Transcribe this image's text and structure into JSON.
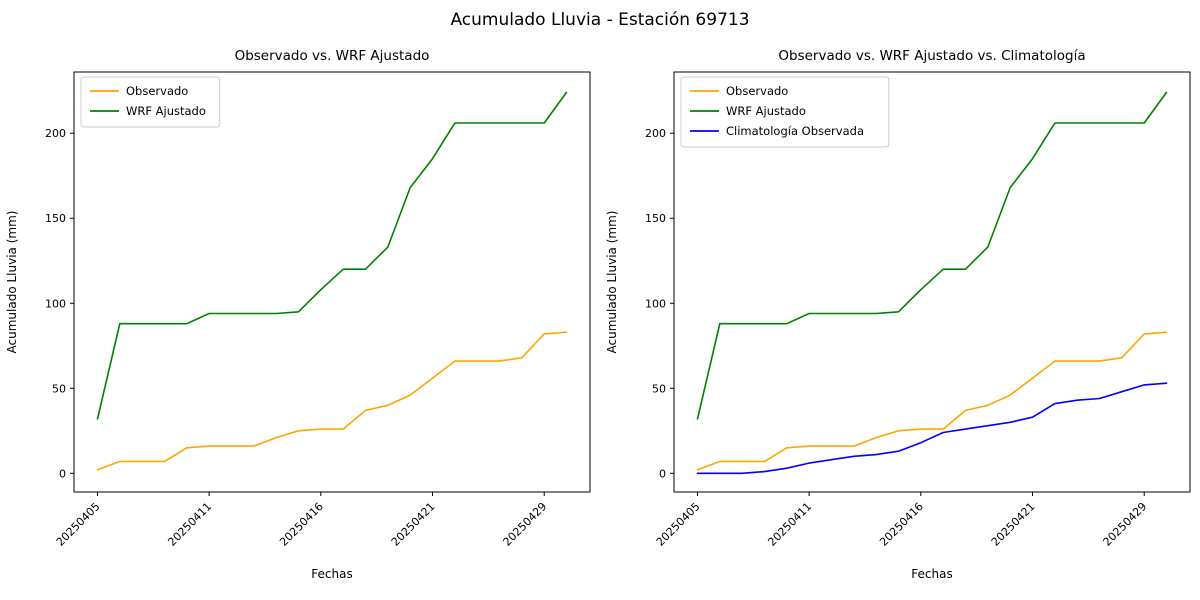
{
  "suptitle": "Acumulado Lluvia - Estación 69713",
  "chart_data": [
    {
      "type": "line",
      "title": "Observado vs. WRF Ajustado",
      "xlabel": "Fechas",
      "ylabel": "Acumulado Lluvia (mm)",
      "x": [
        "20250405",
        "20250406",
        "20250407",
        "20250408",
        "20250409",
        "20250411",
        "20250412",
        "20250413",
        "20250414",
        "20250415",
        "20250416",
        "20250417",
        "20250418",
        "20250419",
        "20250420",
        "20250421",
        "20250422",
        "20250423",
        "20250425",
        "20250427",
        "20250429",
        "20250430"
      ],
      "xticks": {
        "indices": [
          0,
          5,
          10,
          15,
          20
        ],
        "labels": [
          "20250405",
          "20250411",
          "20250416",
          "20250421",
          "20250429"
        ]
      },
      "yticks": [
        0,
        50,
        100,
        150,
        200
      ],
      "ylim": [
        -11,
        236
      ],
      "grid": false,
      "legend_position": "upper left",
      "series": [
        {
          "name": "Observado",
          "color": "#ffa500",
          "values": [
            2,
            7,
            7,
            7,
            15,
            16,
            16,
            16,
            21,
            25,
            26,
            26,
            37,
            40,
            46,
            56,
            66,
            66,
            66,
            68,
            82,
            83
          ]
        },
        {
          "name": "WRF Ajustado",
          "color": "#008000",
          "values": [
            32,
            88,
            88,
            88,
            88,
            94,
            94,
            94,
            94,
            95,
            108,
            120,
            120,
            133,
            168,
            185,
            206,
            206,
            206,
            206,
            206,
            224
          ]
        }
      ]
    },
    {
      "type": "line",
      "title": "Observado vs. WRF Ajustado vs. Climatología",
      "xlabel": "Fechas",
      "ylabel": "Acumulado Lluvia (mm)",
      "x": [
        "20250405",
        "20250406",
        "20250407",
        "20250408",
        "20250409",
        "20250411",
        "20250412",
        "20250413",
        "20250414",
        "20250415",
        "20250416",
        "20250417",
        "20250418",
        "20250419",
        "20250420",
        "20250421",
        "20250422",
        "20250423",
        "20250425",
        "20250427",
        "20250429",
        "20250430"
      ],
      "xticks": {
        "indices": [
          0,
          5,
          10,
          15,
          20
        ],
        "labels": [
          "20250405",
          "20250411",
          "20250416",
          "20250421",
          "20250429"
        ]
      },
      "yticks": [
        0,
        50,
        100,
        150,
        200
      ],
      "ylim": [
        -11,
        236
      ],
      "grid": false,
      "legend_position": "upper left",
      "series": [
        {
          "name": "Observado",
          "color": "#ffa500",
          "values": [
            2,
            7,
            7,
            7,
            15,
            16,
            16,
            16,
            21,
            25,
            26,
            26,
            37,
            40,
            46,
            56,
            66,
            66,
            66,
            68,
            82,
            83
          ]
        },
        {
          "name": "WRF Ajustado",
          "color": "#008000",
          "values": [
            32,
            88,
            88,
            88,
            88,
            94,
            94,
            94,
            94,
            95,
            108,
            120,
            120,
            133,
            168,
            185,
            206,
            206,
            206,
            206,
            206,
            224
          ]
        },
        {
          "name": "Climatología Observada",
          "color": "#0000ff",
          "values": [
            0,
            0,
            0,
            1,
            3,
            6,
            8,
            10,
            11,
            13,
            18,
            24,
            26,
            28,
            30,
            33,
            41,
            43,
            44,
            48,
            52,
            53
          ]
        }
      ]
    }
  ]
}
